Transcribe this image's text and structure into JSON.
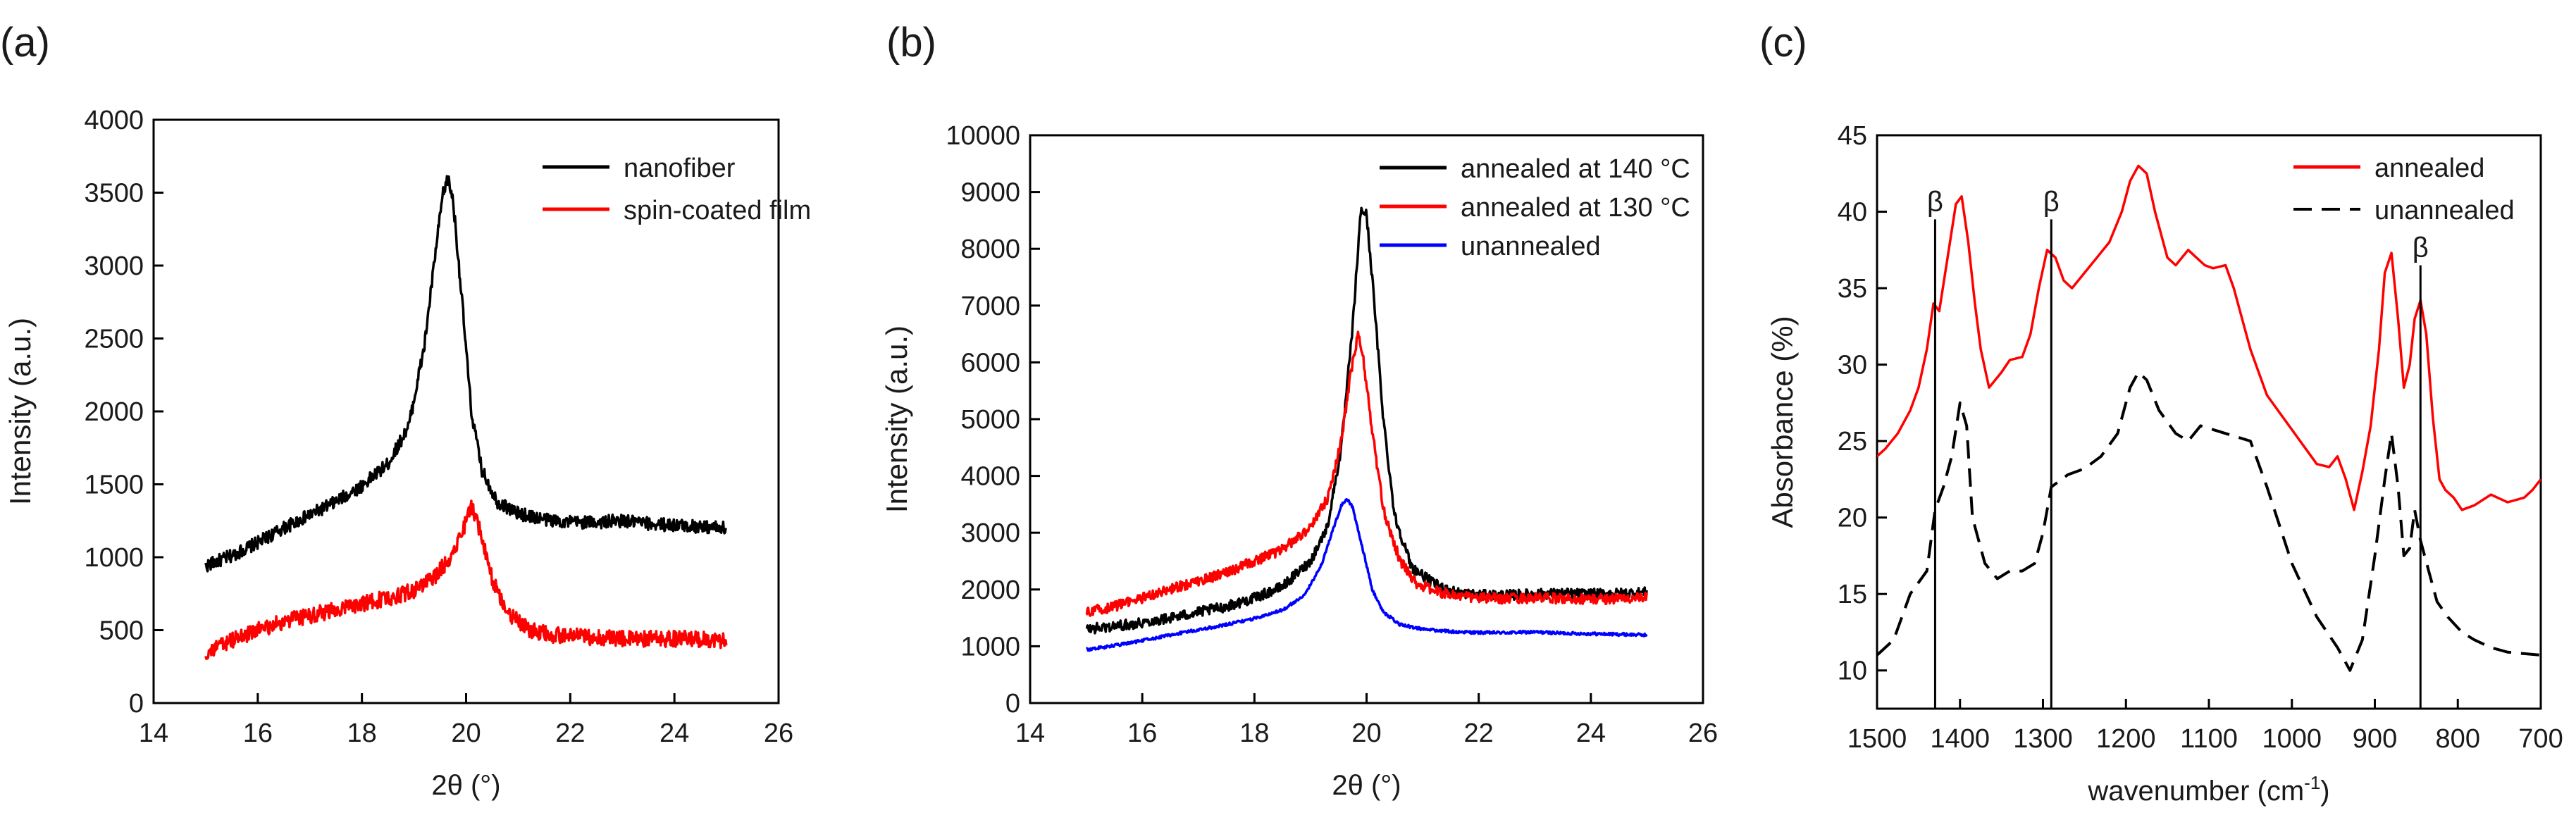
{
  "chart_data": [
    {
      "panel_label": "(a)",
      "type": "line",
      "title": "",
      "xlabel": "2θ (°)",
      "ylabel": "Intensity (a.u.)",
      "xlim": [
        14,
        26
      ],
      "ylim": [
        0,
        4000
      ],
      "xticks": [
        14,
        16,
        18,
        20,
        22,
        24,
        26
      ],
      "yticks": [
        0,
        500,
        1000,
        1500,
        2000,
        2500,
        3000,
        3500,
        4000
      ],
      "grid": false,
      "legend_position": "top-right",
      "series": [
        {
          "name": "nanofiber",
          "color": "#000000",
          "dash": "solid",
          "noise": 45,
          "x": [
            15,
            15.5,
            16,
            16.5,
            17,
            17.5,
            18,
            18.5,
            18.9,
            19.2,
            19.4,
            19.55,
            19.65,
            19.75,
            19.9,
            20.1,
            20.3,
            20.6,
            21,
            21.5,
            22,
            22.5,
            23,
            23.5,
            24,
            24.5,
            25
          ],
          "y": [
            940,
            1010,
            1100,
            1200,
            1290,
            1380,
            1490,
            1640,
            1900,
            2450,
            3050,
            3480,
            3600,
            3450,
            2850,
            2000,
            1600,
            1380,
            1300,
            1260,
            1240,
            1240,
            1250,
            1230,
            1220,
            1210,
            1200
          ]
        },
        {
          "name": "spin-coated film",
          "color": "#ff0000",
          "dash": "solid",
          "noise": 55,
          "x": [
            15,
            15.5,
            16,
            16.5,
            17,
            17.5,
            18,
            18.5,
            19,
            19.4,
            19.7,
            19.95,
            20.1,
            20.3,
            20.5,
            20.8,
            21.2,
            21.6,
            22,
            22.5,
            23,
            23.5,
            24,
            24.5,
            25
          ],
          "y": [
            340,
            430,
            500,
            560,
            600,
            640,
            680,
            720,
            770,
            870,
            1000,
            1200,
            1350,
            1150,
            850,
            620,
            500,
            470,
            460,
            450,
            440,
            440,
            440,
            440,
            430
          ]
        }
      ]
    },
    {
      "panel_label": "(b)",
      "type": "line",
      "title": "",
      "xlabel": "2θ (°)",
      "ylabel": "Intensity (a.u.)",
      "xlim": [
        14,
        26
      ],
      "ylim": [
        0,
        10000
      ],
      "xticks": [
        14,
        16,
        18,
        20,
        22,
        24,
        26
      ],
      "yticks": [
        0,
        1000,
        2000,
        3000,
        4000,
        5000,
        6000,
        7000,
        8000,
        9000,
        10000
      ],
      "grid": false,
      "legend_position": "top-right",
      "series": [
        {
          "name": "annealed at 140 °C",
          "color": "#000000",
          "dash": "solid",
          "noise": 90,
          "x": [
            15,
            15.5,
            16,
            16.5,
            17,
            17.5,
            18,
            18.5,
            19,
            19.3,
            19.55,
            19.75,
            19.9,
            20.0,
            20.1,
            20.3,
            20.5,
            20.8,
            21.2,
            21.6,
            22,
            22.5,
            23,
            23.5,
            24,
            24.5,
            25
          ],
          "y": [
            1300,
            1350,
            1420,
            1500,
            1600,
            1700,
            1850,
            2050,
            2500,
            3100,
            4500,
            6600,
            8700,
            8600,
            7500,
            5000,
            3300,
            2400,
            2100,
            1950,
            1900,
            1900,
            1920,
            1930,
            1920,
            1930,
            1950
          ]
        },
        {
          "name": "annealed at 130 °C",
          "color": "#ff0000",
          "dash": "solid",
          "noise": 90,
          "x": [
            15,
            15.5,
            16,
            16.5,
            17,
            17.5,
            18,
            18.5,
            19,
            19.3,
            19.55,
            19.7,
            19.85,
            19.95,
            20.1,
            20.3,
            20.6,
            20.9,
            21.3,
            21.7,
            22,
            22.5,
            23,
            23.5,
            24,
            24.5,
            25
          ],
          "y": [
            1600,
            1700,
            1850,
            2000,
            2150,
            2300,
            2500,
            2700,
            3100,
            3600,
            4600,
            5700,
            6500,
            6000,
            4800,
            3400,
            2500,
            2100,
            1950,
            1880,
            1850,
            1840,
            1850,
            1840,
            1830,
            1840,
            1850
          ]
        },
        {
          "name": "unannealed",
          "color": "#0000ff",
          "dash": "solid",
          "noise": 25,
          "x": [
            15,
            15.5,
            16,
            16.5,
            17,
            17.5,
            18,
            18.5,
            18.9,
            19.2,
            19.4,
            19.55,
            19.65,
            19.75,
            19.9,
            20.1,
            20.3,
            20.6,
            21,
            21.5,
            22,
            22.5,
            23,
            23.5,
            24,
            24.5,
            25
          ],
          "y": [
            940,
            1010,
            1100,
            1200,
            1290,
            1380,
            1490,
            1640,
            1900,
            2450,
            3050,
            3480,
            3600,
            3450,
            2850,
            2000,
            1600,
            1380,
            1300,
            1260,
            1240,
            1240,
            1250,
            1230,
            1220,
            1210,
            1200
          ]
        }
      ]
    },
    {
      "panel_label": "(c)",
      "type": "line",
      "title": "",
      "xlabel": "wavenumber (cm",
      "xlabel_sup": "-1",
      "xlabel_end": ")",
      "ylabel": "Absorbance (%)",
      "xlim": [
        1500,
        700
      ],
      "ylim": [
        7.5,
        45
      ],
      "xticks": [
        1500,
        1400,
        1300,
        1200,
        1100,
        1000,
        900,
        800,
        700
      ],
      "yticks": [
        10,
        15,
        20,
        25,
        30,
        35,
        40,
        45
      ],
      "grid": false,
      "legend_position": "top-right",
      "annotations": [
        {
          "text": "β",
          "x": 1430,
          "y_top": 39.5,
          "y_bottom": 7.5
        },
        {
          "text": "β",
          "x": 1290,
          "y_top": 39.5,
          "y_bottom": 7.5
        },
        {
          "text": "β",
          "x": 845,
          "y_top": 36.5,
          "y_bottom": 7.5
        }
      ],
      "series": [
        {
          "name": "annealed",
          "color": "#ff0000",
          "dash": "solid",
          "noise": 0,
          "x": [
            1500,
            1490,
            1475,
            1460,
            1450,
            1440,
            1432,
            1425,
            1415,
            1405,
            1398,
            1390,
            1382,
            1375,
            1365,
            1350,
            1340,
            1325,
            1315,
            1305,
            1295,
            1285,
            1275,
            1265,
            1250,
            1235,
            1220,
            1205,
            1195,
            1185,
            1175,
            1165,
            1150,
            1140,
            1125,
            1115,
            1105,
            1095,
            1080,
            1070,
            1050,
            1030,
            1010,
            990,
            970,
            955,
            945,
            935,
            925,
            915,
            905,
            895,
            888,
            880,
            872,
            865,
            858,
            852,
            845,
            838,
            830,
            822,
            815,
            805,
            795,
            780,
            760,
            740,
            720,
            710,
            700
          ],
          "y": [
            24,
            24.5,
            25.5,
            27,
            28.5,
            31,
            34,
            33.5,
            37,
            40.5,
            41,
            38,
            34,
            31,
            28.5,
            29.5,
            30.3,
            30.5,
            32,
            35,
            37.5,
            37,
            35.5,
            35,
            36,
            37,
            38,
            40,
            42,
            43,
            42.5,
            40,
            37,
            36.5,
            37.5,
            37,
            36.5,
            36.3,
            36.5,
            35,
            31,
            28,
            26.5,
            25,
            23.5,
            23.3,
            24,
            22.5,
            20.5,
            23,
            26,
            31,
            36,
            37.3,
            33,
            28.5,
            30,
            33,
            34.2,
            32,
            26.5,
            22.5,
            21.8,
            21.3,
            20.5,
            20.8,
            21.5,
            21,
            21.3,
            21.8,
            22.5
          ]
        },
        {
          "name": "unannealed",
          "color": "#000000",
          "dash": "dashed",
          "noise": 0,
          "x": [
            1500,
            1480,
            1460,
            1440,
            1430,
            1420,
            1410,
            1400,
            1392,
            1385,
            1370,
            1355,
            1340,
            1325,
            1310,
            1300,
            1290,
            1270,
            1250,
            1230,
            1210,
            1195,
            1185,
            1175,
            1160,
            1140,
            1125,
            1110,
            1080,
            1050,
            1030,
            1000,
            970,
            945,
            930,
            915,
            900,
            888,
            880,
            872,
            865,
            858,
            852,
            845,
            835,
            825,
            812,
            795,
            780,
            760,
            740,
            720,
            700
          ],
          "y": [
            11,
            12,
            15,
            16.5,
            20.5,
            22,
            24,
            27.5,
            26,
            20,
            17,
            16,
            16.5,
            16.5,
            17,
            19,
            22,
            22.8,
            23.2,
            24,
            25.5,
            28.5,
            29.5,
            29,
            27,
            25.5,
            25,
            26,
            25.5,
            25,
            22,
            17,
            13.5,
            11.5,
            10,
            12,
            17.5,
            22.5,
            25.5,
            22,
            17.5,
            18,
            20.5,
            18.5,
            16.5,
            14.5,
            13.5,
            12.5,
            12,
            11.5,
            11.2,
            11.1,
            11
          ]
        }
      ]
    }
  ]
}
